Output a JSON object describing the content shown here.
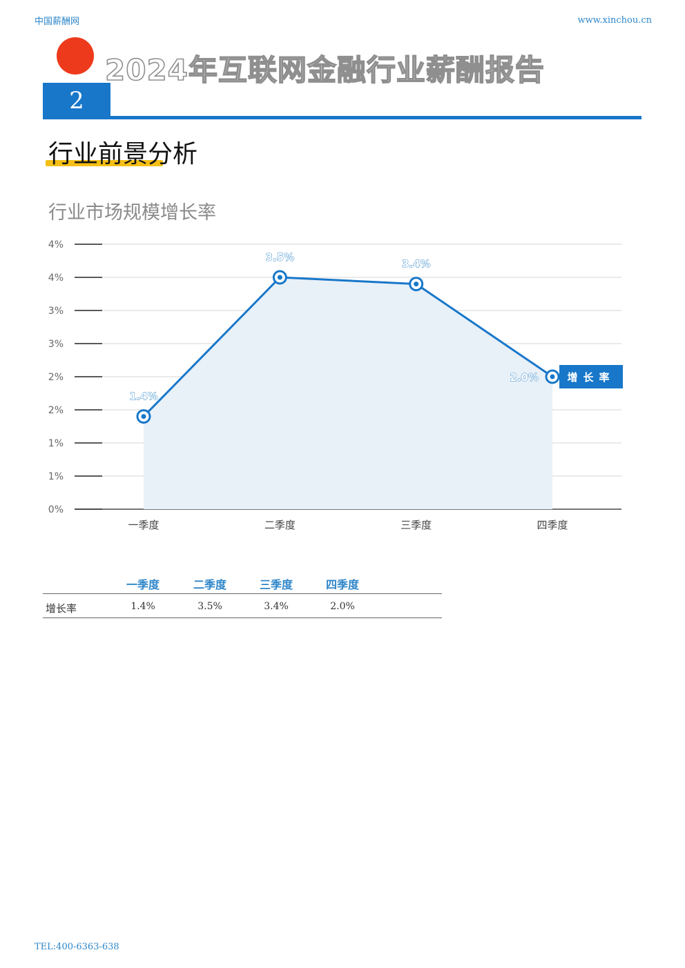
{
  "header": {
    "site_name": "中国薪酬网",
    "site_url": "www.xinchou.cn",
    "report_title": "2024年互联网金融行业薪酬报告",
    "section_number": "2",
    "section_title": "行业前景分析"
  },
  "chart_title": "行业市场规模增长率",
  "chart_data": {
    "type": "area",
    "categories": [
      "一季度",
      "二季度",
      "三季度",
      "四季度"
    ],
    "series": [
      {
        "name": "增长率",
        "values": [
          1.4,
          3.5,
          3.4,
          2.0
        ],
        "labels": [
          "1.4%",
          "3.5%",
          "3.4%",
          "2.0%"
        ]
      }
    ],
    "y_tick_labels": [
      "0%",
      "1%",
      "1%",
      "2%",
      "2%",
      "3%",
      "3%",
      "4%",
      "4%"
    ],
    "ylim": [
      0,
      4
    ],
    "grid": true,
    "legend": "right",
    "colors": {
      "line": "#1877c9",
      "fill": "#e8f0f8",
      "label": "#2e86c9",
      "legend_bg": "#1877c9"
    }
  },
  "table": {
    "headers": [
      "一季度",
      "二季度",
      "三季度",
      "四季度"
    ],
    "row_label": "增长率",
    "values": [
      "1.4%",
      "3.5%",
      "3.4%",
      "2.0%"
    ]
  },
  "footer": {
    "tel": "TEL:400-6363-638"
  }
}
